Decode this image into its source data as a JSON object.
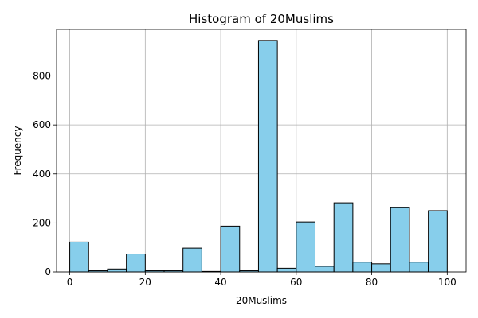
{
  "chart_data": {
    "type": "bar",
    "title": "Histogram of 20Muslims",
    "xlabel": "20Muslims",
    "ylabel": "Frequency",
    "bin_edges": [
      0,
      5,
      10,
      15,
      20,
      25,
      30,
      35,
      40,
      45,
      50,
      55,
      60,
      65,
      70,
      75,
      80,
      85,
      90,
      95,
      100
    ],
    "values": [
      122,
      5,
      12,
      73,
      5,
      5,
      97,
      2,
      187,
      5,
      945,
      15,
      204,
      23,
      282,
      40,
      33,
      262,
      40,
      250
    ],
    "xlim": [
      -3.5,
      105
    ],
    "ylim": [
      0,
      990
    ],
    "xticks": [
      0,
      20,
      40,
      60,
      80,
      100
    ],
    "yticks": [
      0,
      200,
      400,
      600,
      800
    ],
    "grid": true,
    "bar_color": "#87ceeb",
    "edge_color": "#000000"
  }
}
